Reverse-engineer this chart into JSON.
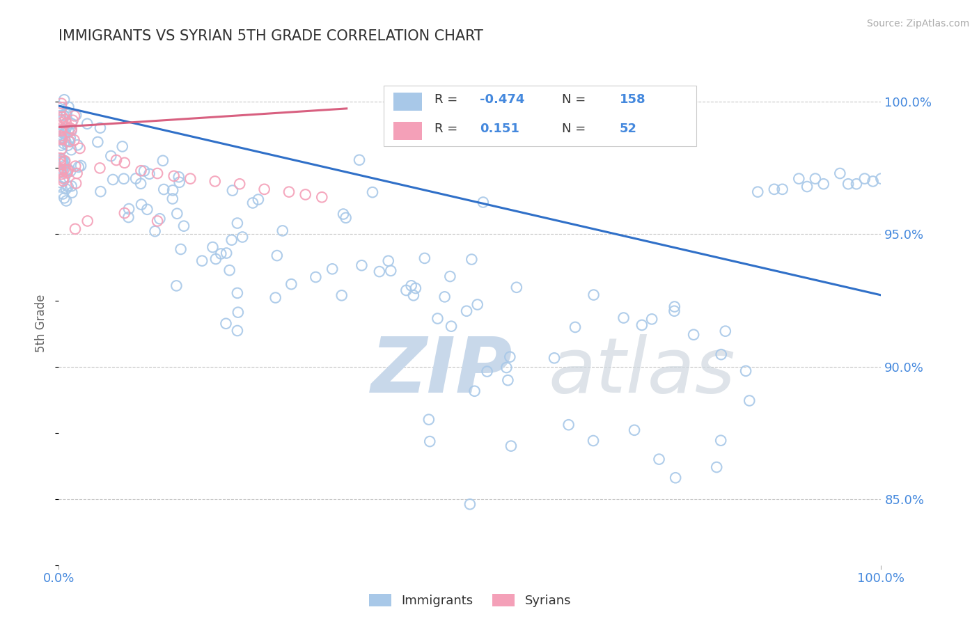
{
  "title": "IMMIGRANTS VS SYRIAN 5TH GRADE CORRELATION CHART",
  "source_text": "Source: ZipAtlas.com",
  "ylabel": "5th Grade",
  "x_min": 0.0,
  "x_max": 1.0,
  "y_min": 0.825,
  "y_max": 1.008,
  "y_tick_values": [
    0.85,
    0.9,
    0.95,
    1.0
  ],
  "legend_blue_label": "Immigrants",
  "legend_pink_label": "Syrians",
  "R_blue": -0.474,
  "N_blue": 158,
  "R_pink": 0.151,
  "N_pink": 52,
  "blue_color": "#a8c8e8",
  "pink_color": "#f4a0b8",
  "blue_line_color": "#3070c8",
  "pink_line_color": "#d86080",
  "title_color": "#303030",
  "axis_label_color": "#4488dd",
  "watermark_blue": "#c8d8ea",
  "watermark_gray": "#d0d8e0",
  "grid_color": "#c8c8c8",
  "background_color": "#ffffff",
  "blue_line_x0": 0.0,
  "blue_line_x1": 1.0,
  "blue_line_y0": 0.9985,
  "blue_line_y1": 0.927,
  "pink_line_x0": 0.0,
  "pink_line_x1": 0.35,
  "pink_line_y0": 0.9905,
  "pink_line_y1": 0.9975
}
